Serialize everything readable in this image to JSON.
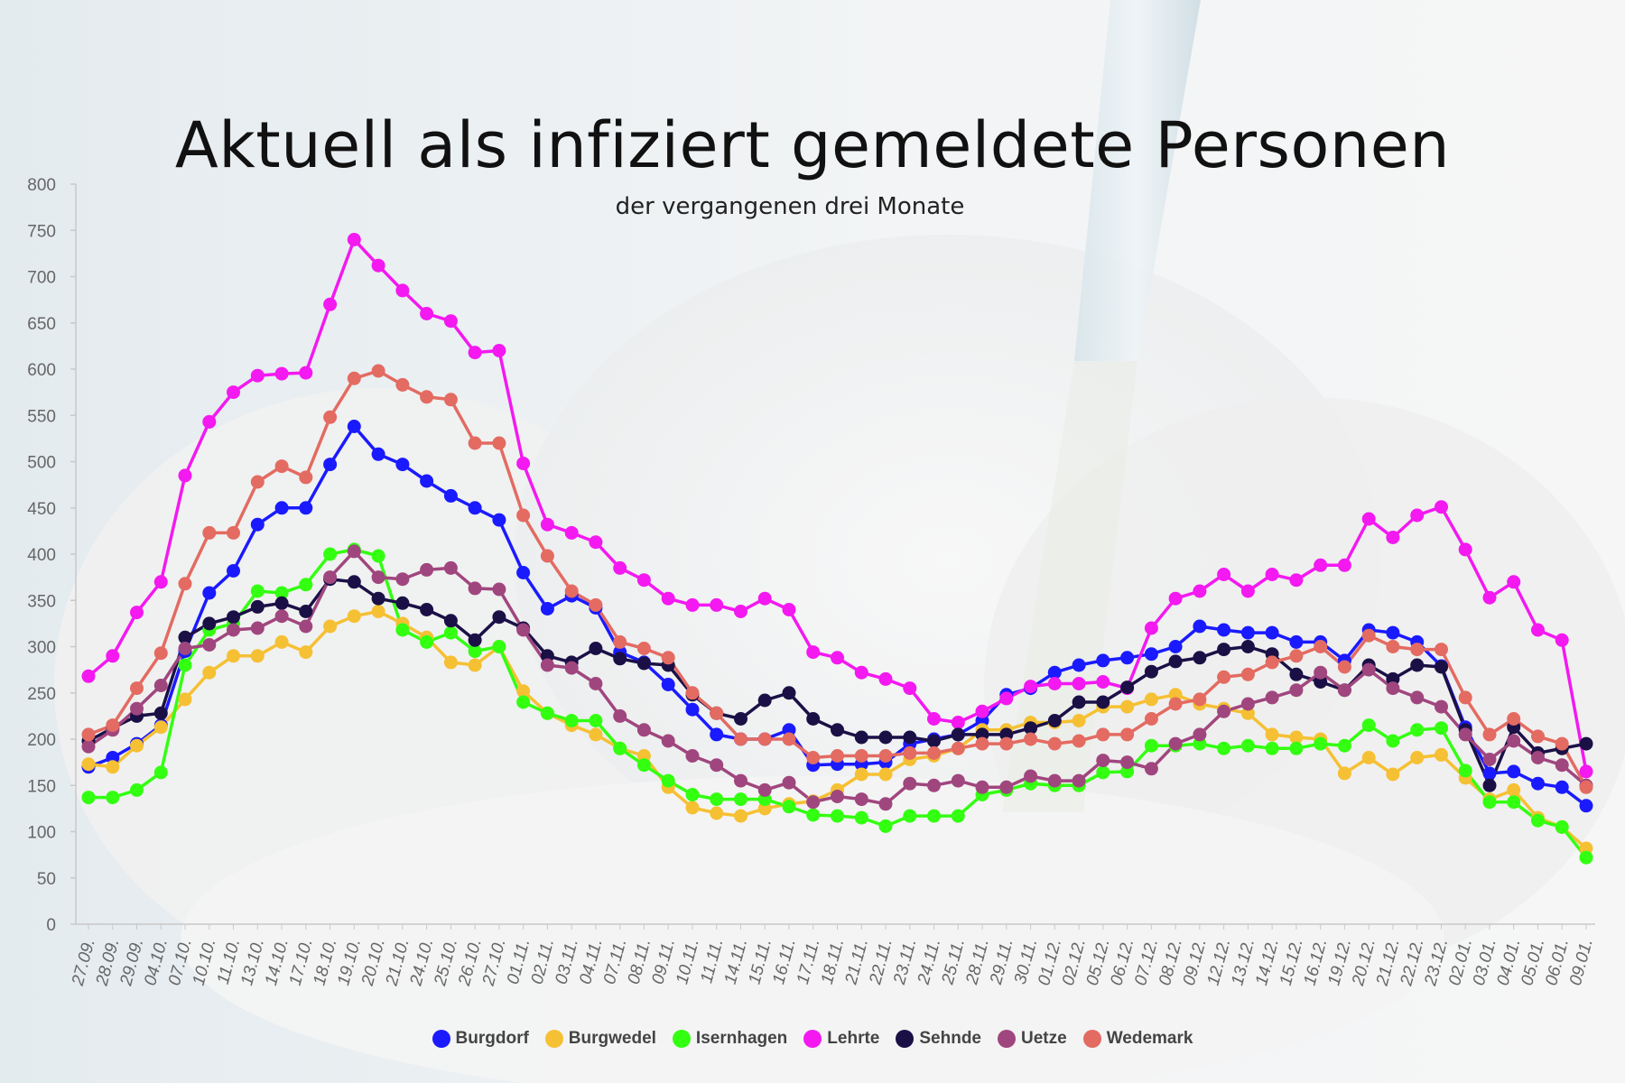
{
  "chart_data": {
    "type": "line",
    "title": "Aktuell als infiziert gemeldete Personen",
    "subtitle": "der vergangenen drei Monate",
    "xlabel": "",
    "ylabel": "",
    "ylim": [
      0,
      800
    ],
    "yticks": [
      0,
      50,
      100,
      150,
      200,
      250,
      300,
      350,
      400,
      450,
      500,
      550,
      600,
      650,
      700,
      750,
      800
    ],
    "grid": false,
    "legend": "bottom",
    "categories": [
      "27.09.",
      "28.09.",
      "29.09.",
      "04.10.",
      "07.10.",
      "10.10.",
      "11.10.",
      "13.10.",
      "14.10.",
      "17.10.",
      "18.10.",
      "19.10.",
      "20.10.",
      "21.10.",
      "24.10.",
      "25.10.",
      "26.10.",
      "27.10.",
      "01.11.",
      "02.11.",
      "03.11.",
      "04.11.",
      "07.11.",
      "08.11.",
      "09.11.",
      "10.11.",
      "11.11.",
      "14.11.",
      "15.11.",
      "16.11.",
      "17.11.",
      "18.11.",
      "21.11.",
      "22.11.",
      "23.11.",
      "24.11.",
      "25.11.",
      "28.11.",
      "29.11.",
      "30.11.",
      "01.12.",
      "02.12.",
      "05.12.",
      "06.12.",
      "07.12.",
      "08.12.",
      "09.12.",
      "12.12.",
      "13.12.",
      "14.12.",
      "15.12.",
      "16.12.",
      "19.12.",
      "20.12.",
      "21.12.",
      "22.12.",
      "23.12.",
      "02.01.",
      "03.01.",
      "04.01.",
      "05.01.",
      "06.01.",
      "09.01."
    ],
    "series": [
      {
        "name": "Burgdorf",
        "color": "#1a1aff",
        "values": [
          170,
          180,
          195,
          215,
          295,
          358,
          382,
          432,
          450,
          450,
          497,
          538,
          508,
          497,
          479,
          463,
          450,
          437,
          380,
          341,
          355,
          342,
          294,
          283,
          259,
          232,
          205,
          200,
          200,
          210,
          172,
          173,
          173,
          175,
          195,
          200,
          205,
          220,
          248,
          255,
          272,
          280,
          285,
          288,
          292,
          300,
          322,
          318,
          315,
          315,
          305,
          305,
          285,
          318,
          315,
          305,
          279,
          213,
          163,
          165,
          152,
          148,
          128
        ]
      },
      {
        "name": "Burgwedel",
        "color": "#f5c033",
        "values": [
          173,
          170,
          193,
          213,
          243,
          272,
          290,
          290,
          305,
          294,
          322,
          333,
          338,
          325,
          310,
          283,
          280,
          300,
          252,
          228,
          215,
          205,
          190,
          182,
          148,
          126,
          120,
          117,
          125,
          130,
          133,
          145,
          162,
          162,
          178,
          182,
          190,
          210,
          210,
          218,
          218,
          220,
          235,
          235,
          243,
          248,
          238,
          233,
          228,
          205,
          202,
          200,
          163,
          180,
          162,
          180,
          183,
          158,
          135,
          145,
          115,
          105,
          82
        ]
      },
      {
        "name": "Isernhagen",
        "color": "#33ff11",
        "values": [
          137,
          137,
          145,
          164,
          280,
          318,
          325,
          360,
          358,
          367,
          400,
          405,
          398,
          318,
          305,
          315,
          295,
          300,
          240,
          228,
          220,
          220,
          190,
          172,
          155,
          140,
          135,
          135,
          135,
          127,
          118,
          117,
          115,
          106,
          117,
          117,
          117,
          140,
          145,
          152,
          150,
          150,
          164,
          165,
          193,
          193,
          195,
          190,
          193,
          190,
          190,
          195,
          193,
          215,
          198,
          210,
          212,
          166,
          132,
          132,
          112,
          105,
          72
        ]
      },
      {
        "name": "Lehrte",
        "color": "#f319f0",
        "values": [
          268,
          290,
          337,
          370,
          485,
          543,
          575,
          593,
          595,
          596,
          670,
          740,
          712,
          685,
          660,
          652,
          618,
          620,
          498,
          432,
          423,
          413,
          385,
          372,
          352,
          345,
          345,
          338,
          352,
          340,
          294,
          288,
          272,
          265,
          255,
          222,
          218,
          230,
          244,
          257,
          260,
          260,
          262,
          255,
          320,
          352,
          360,
          378,
          360,
          378,
          372,
          388,
          388,
          438,
          418,
          442,
          451,
          405,
          353,
          370,
          318,
          307,
          165
        ]
      },
      {
        "name": "Sehnde",
        "color": "#1b1046",
        "values": [
          198,
          212,
          225,
          228,
          310,
          325,
          332,
          343,
          347,
          338,
          373,
          370,
          352,
          347,
          340,
          328,
          307,
          332,
          320,
          290,
          283,
          298,
          287,
          282,
          280,
          248,
          228,
          222,
          242,
          250,
          222,
          210,
          202,
          202,
          202,
          198,
          205,
          205,
          205,
          212,
          220,
          240,
          240,
          256,
          273,
          284,
          288,
          297,
          300,
          292,
          270,
          262,
          253,
          280,
          265,
          280,
          278,
          210,
          150,
          213,
          185,
          190,
          195
        ]
      },
      {
        "name": "Uetze",
        "color": "#a0467e",
        "values": [
          192,
          210,
          233,
          258,
          298,
          302,
          318,
          320,
          333,
          322,
          375,
          403,
          375,
          373,
          383,
          385,
          363,
          362,
          318,
          280,
          277,
          260,
          225,
          210,
          198,
          182,
          172,
          155,
          145,
          153,
          132,
          138,
          135,
          130,
          152,
          150,
          155,
          148,
          148,
          160,
          155,
          155,
          177,
          175,
          168,
          195,
          205,
          230,
          238,
          245,
          253,
          272,
          253,
          275,
          255,
          245,
          235,
          205,
          178,
          198,
          180,
          172,
          150
        ]
      },
      {
        "name": "Wedemark",
        "color": "#e36b62",
        "values": [
          205,
          215,
          255,
          293,
          368,
          423,
          423,
          478,
          495,
          483,
          548,
          590,
          598,
          583,
          570,
          567,
          520,
          520,
          442,
          398,
          360,
          345,
          305,
          298,
          288,
          250,
          228,
          200,
          200,
          200,
          180,
          182,
          182,
          182,
          185,
          185,
          190,
          195,
          195,
          200,
          195,
          198,
          205,
          205,
          222,
          238,
          243,
          267,
          270,
          283,
          290,
          300,
          278,
          312,
          300,
          297,
          297,
          245,
          205,
          222,
          203,
          195,
          148
        ]
      }
    ]
  }
}
